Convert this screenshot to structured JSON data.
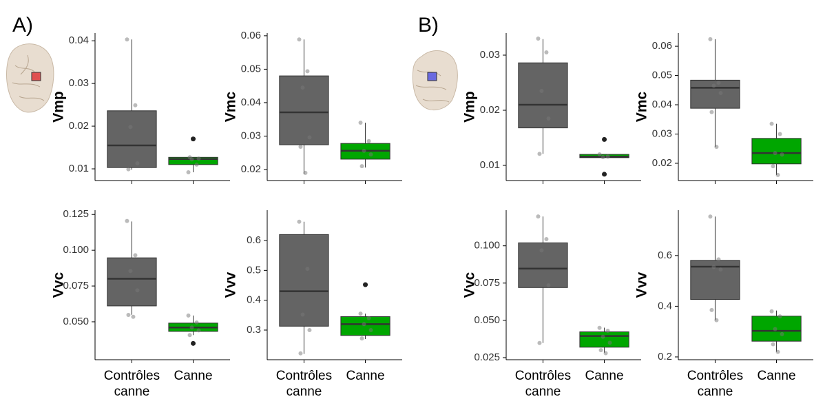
{
  "panel_labels": [
    "A)",
    "B)"
  ],
  "chart_data": [
    {
      "type": "box",
      "ylabel": "Vmp",
      "ylim": [
        0.00726,
        0.0418
      ],
      "yticks": [
        0.01,
        0.02,
        0.03,
        0.04
      ],
      "boxes": [
        {
          "color": "#646464",
          "min": 0.0098,
          "q1": 0.0103,
          "median": 0.0155,
          "q3": 0.0236,
          "max": 0.0403,
          "outliers": [],
          "points": [
            0.0403,
            0.0249,
            0.0198,
            0.0113,
            0.0099
          ]
        },
        {
          "color": "#00a600",
          "min": 0.0092,
          "q1": 0.011,
          "median": 0.0123,
          "q3": 0.0127,
          "max": 0.0127,
          "outliers": [
            0.017
          ],
          "points": [
            0.0092,
            0.011,
            0.0122,
            0.0124,
            0.0127
          ]
        }
      ]
    },
    {
      "type": "box",
      "ylabel": "Vmc",
      "ylim": [
        0.0167,
        0.0608
      ],
      "yticks": [
        0.02,
        0.03,
        0.04,
        0.05,
        0.06
      ],
      "boxes": [
        {
          "color": "#646464",
          "min": 0.0186,
          "q1": 0.0274,
          "median": 0.0371,
          "q3": 0.048,
          "max": 0.0589,
          "outliers": [],
          "points": [
            0.0589,
            0.0494,
            0.0445,
            0.0296,
            0.0268,
            0.019
          ]
        },
        {
          "color": "#00a600",
          "min": 0.0206,
          "q1": 0.0231,
          "median": 0.0256,
          "q3": 0.0278,
          "max": 0.034,
          "outliers": [],
          "points": [
            0.034,
            0.0285,
            0.0256,
            0.0245,
            0.021
          ]
        }
      ]
    },
    {
      "type": "box",
      "ylabel": "Vvc",
      "ylim": [
        0.0235,
        0.128
      ],
      "yticks": [
        {
          "value": 0.05,
          "label": "0.050"
        },
        0.075,
        {
          "value": 0.1,
          "label": "0.100"
        },
        0.125
      ],
      "categories": [
        "Contrôles canne",
        "Canne"
      ],
      "boxes": [
        {
          "color": "#646464",
          "min": 0.0549,
          "q1": 0.0611,
          "median": 0.0801,
          "q3": 0.0947,
          "max": 0.1201,
          "outliers": [],
          "points": [
            0.1205,
            0.0965,
            0.0855,
            0.072,
            0.0548,
            0.0535
          ]
        },
        {
          "color": "#00a600",
          "min": 0.0407,
          "q1": 0.0433,
          "median": 0.046,
          "q3": 0.0491,
          "max": 0.0544,
          "outliers": [
            0.0349
          ],
          "points": [
            0.0544,
            0.0495,
            0.046,
            0.044,
            0.0407
          ]
        }
      ]
    },
    {
      "type": "box",
      "ylabel": "Vvv",
      "ylim": [
        0.2007,
        0.7016
      ],
      "yticks": [
        0.3,
        0.4,
        0.5,
        0.6
      ],
      "categories": [
        "Contrôles canne",
        "Canne"
      ],
      "boxes": [
        {
          "color": "#646464",
          "min": 0.22,
          "q1": 0.313,
          "median": 0.43,
          "q3": 0.62,
          "max": 0.663,
          "outliers": [],
          "points": [
            0.663,
            0.505,
            0.352,
            0.3,
            0.222
          ]
        },
        {
          "color": "#00a600",
          "min": 0.27,
          "q1": 0.282,
          "median": 0.32,
          "q3": 0.345,
          "max": 0.355,
          "outliers": [
            0.452
          ],
          "points": [
            0.355,
            0.34,
            0.32,
            0.3,
            0.272
          ]
        }
      ]
    },
    {
      "type": "box",
      "ylabel": "Vmp",
      "ylim": [
        0.00725,
        0.034
      ],
      "yticks": [
        0.01,
        0.02,
        0.03
      ],
      "boxes": [
        {
          "color": "#646464",
          "min": 0.0121,
          "q1": 0.0168,
          "median": 0.021,
          "q3": 0.0286,
          "max": 0.0329,
          "outliers": [],
          "points": [
            0.033,
            0.0305,
            0.0235,
            0.0185,
            0.0121
          ]
        },
        {
          "color": "#00a600",
          "min": 0.0114,
          "q1": 0.0114,
          "median": 0.0116,
          "q3": 0.012,
          "max": 0.012,
          "outliers": [
            0.0147,
            0.0084
          ],
          "points": [
            0.012,
            0.0116,
            0.0115
          ]
        }
      ]
    },
    {
      "type": "box",
      "ylabel": "Vmc",
      "ylim": [
        0.0141,
        0.0645
      ],
      "yticks": [
        0.02,
        0.03,
        0.04,
        0.05,
        0.06
      ],
      "boxes": [
        {
          "color": "#646464",
          "min": 0.0256,
          "q1": 0.0388,
          "median": 0.0458,
          "q3": 0.0484,
          "max": 0.0624,
          "outliers": [],
          "points": [
            0.0624,
            0.0475,
            0.0465,
            0.044,
            0.0375,
            0.0256
          ]
        },
        {
          "color": "#00a600",
          "min": 0.016,
          "q1": 0.0198,
          "median": 0.0235,
          "q3": 0.0285,
          "max": 0.0335,
          "outliers": [],
          "points": [
            0.0335,
            0.03,
            0.0235,
            0.023,
            0.019,
            0.016
          ]
        }
      ]
    },
    {
      "type": "box",
      "ylabel": "Vvc",
      "ylim": [
        0.0236,
        0.1239
      ],
      "yticks": [
        0.025,
        {
          "value": 0.05,
          "label": "0.050"
        },
        0.075,
        {
          "value": 0.1,
          "label": "0.100"
        }
      ],
      "categories": [
        "Contrôles canne",
        "Canne"
      ],
      "boxes": [
        {
          "color": "#646464",
          "min": 0.0348,
          "q1": 0.072,
          "median": 0.0847,
          "q3": 0.102,
          "max": 0.1197,
          "outliers": [],
          "points": [
            0.1197,
            0.1045,
            0.097,
            0.0735,
            0.0348
          ]
        },
        {
          "color": "#00a600",
          "min": 0.0283,
          "q1": 0.032,
          "median": 0.0395,
          "q3": 0.0423,
          "max": 0.0451,
          "outliers": [],
          "points": [
            0.045,
            0.043,
            0.039,
            0.035,
            0.03,
            0.028
          ]
        }
      ]
    },
    {
      "type": "box",
      "ylabel": "Vvv",
      "ylim": [
        0.189,
        0.779
      ],
      "yticks": [
        0.2,
        0.4,
        0.6
      ],
      "categories": [
        "Contrôles canne",
        "Canne"
      ],
      "boxes": [
        {
          "color": "#646464",
          "min": 0.345,
          "q1": 0.427,
          "median": 0.556,
          "q3": 0.581,
          "max": 0.754,
          "outliers": [],
          "points": [
            0.754,
            0.585,
            0.555,
            0.545,
            0.385,
            0.345
          ]
        },
        {
          "color": "#00a600",
          "min": 0.22,
          "q1": 0.262,
          "median": 0.303,
          "q3": 0.361,
          "max": 0.383,
          "outliers": [],
          "points": [
            0.38,
            0.36,
            0.31,
            0.29,
            0.25,
            0.22
          ]
        }
      ]
    }
  ]
}
